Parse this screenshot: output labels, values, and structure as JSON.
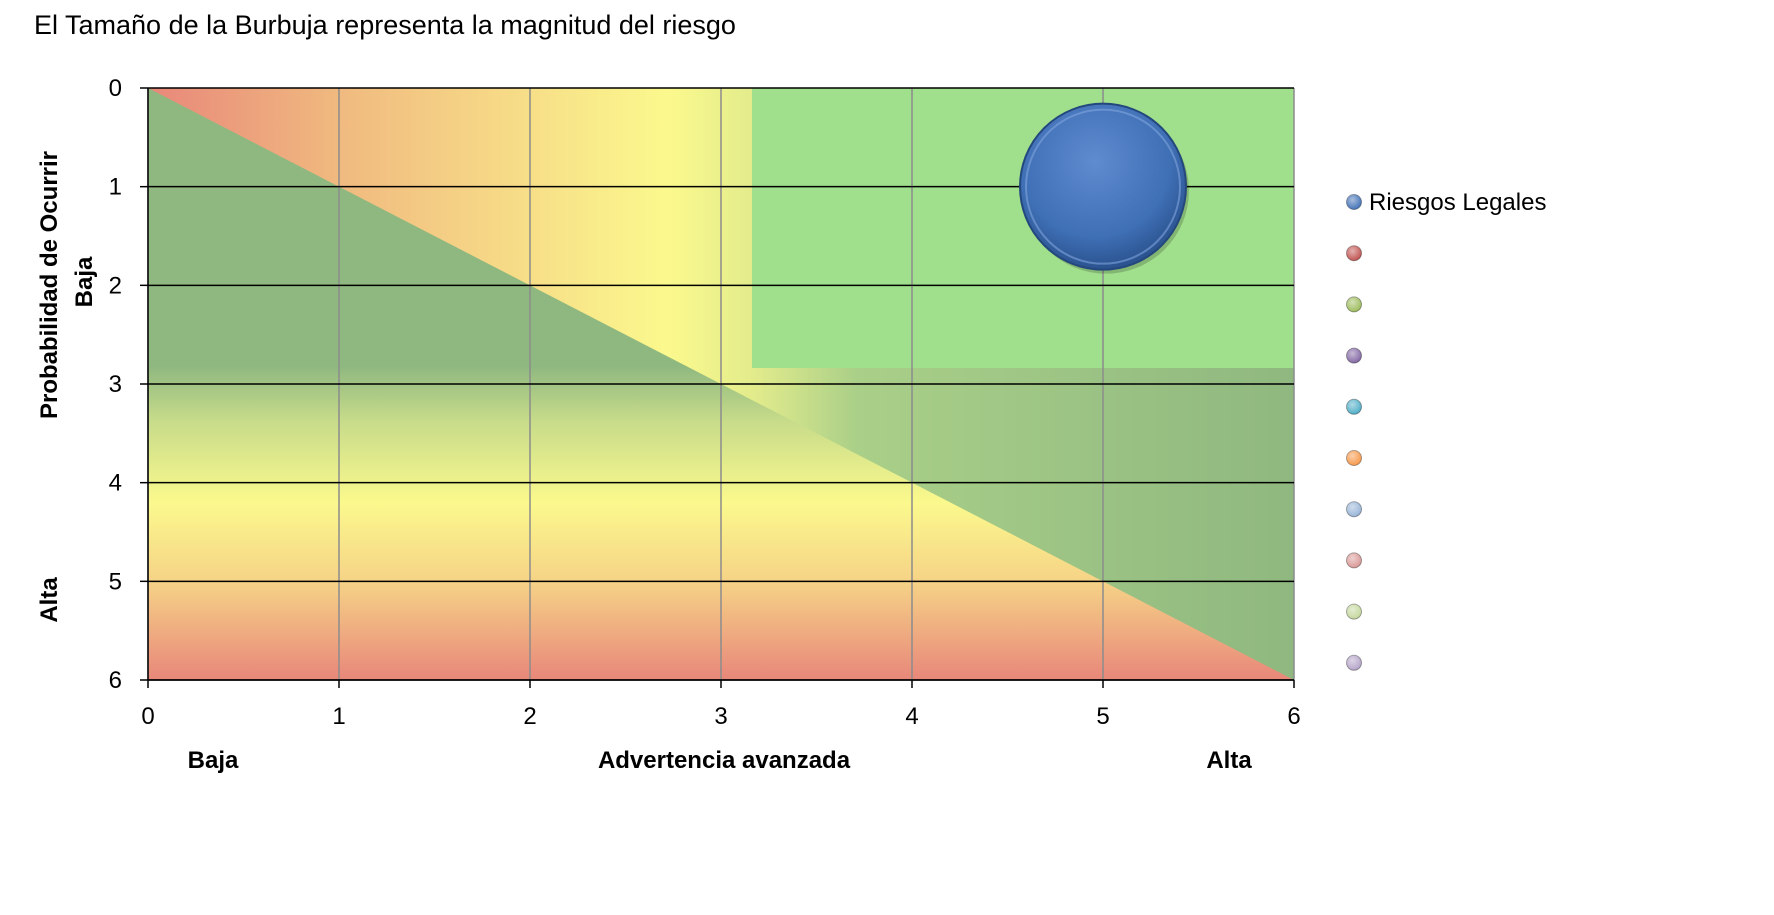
{
  "chart_data": {
    "type": "scatter",
    "subtype": "bubble",
    "title": "El Tamaño de la Burbuja representa la magnitud del riesgo",
    "xlim": [
      0,
      6
    ],
    "ylim": [
      0,
      6
    ],
    "y_inverted": true,
    "x_ticks": [
      "0",
      "1",
      "2",
      "3",
      "4",
      "5",
      "6"
    ],
    "y_ticks": [
      "0",
      "1",
      "2",
      "3",
      "4",
      "5",
      "6"
    ],
    "grid": true,
    "xlabel": "Advertencia avanzada",
    "x_low_label": "Baja",
    "x_high_label": "Alta",
    "ylabel": "Probabilidad de Ocurrir",
    "y_low_label": "Baja",
    "y_high_label": "Alta",
    "legend_position": "right",
    "background_zones": "gradient from red (low warning / high probability) through yellow to green (high warning / low probability)",
    "series": [
      {
        "name": "Riesgos Legales",
        "color": "#3F6FB5",
        "points": [
          {
            "x": 5,
            "y": 1,
            "size": 1
          }
        ]
      },
      {
        "name": "",
        "color": "#C0504D",
        "points": []
      },
      {
        "name": "",
        "color": "#9BBB59",
        "points": []
      },
      {
        "name": "",
        "color": "#8064A2",
        "points": []
      },
      {
        "name": "",
        "color": "#4BACC6",
        "points": []
      },
      {
        "name": "",
        "color": "#F79646",
        "points": []
      },
      {
        "name": "",
        "color": "#95B3D7",
        "points": []
      },
      {
        "name": "",
        "color": "#D99694",
        "points": []
      },
      {
        "name": "",
        "color": "#C3D69B",
        "points": []
      },
      {
        "name": "",
        "color": "#B3A2C7",
        "points": []
      }
    ]
  }
}
